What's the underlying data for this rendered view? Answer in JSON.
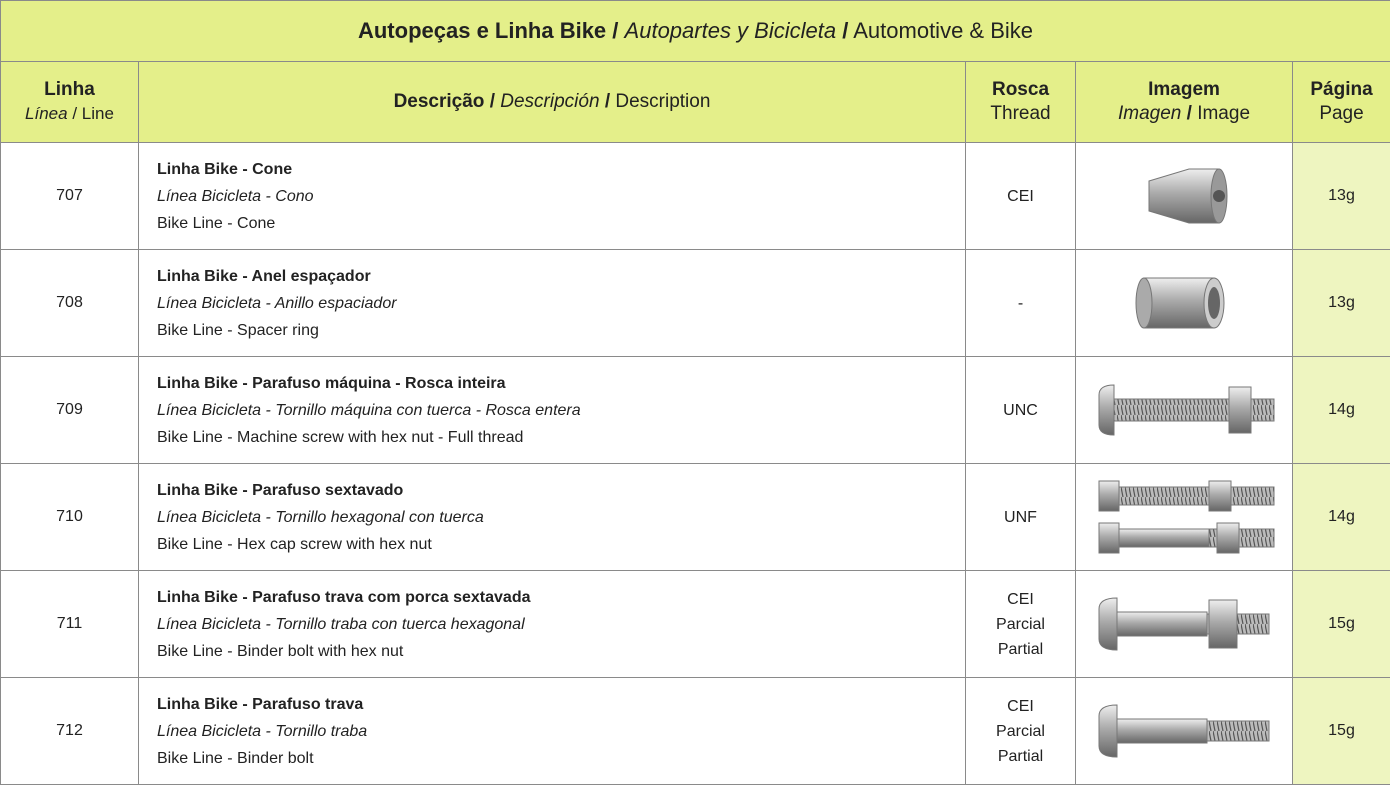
{
  "header": {
    "title": [
      "Autopeças e Linha Bike",
      "/",
      "Autopartes y Bicicleta",
      "/",
      "Automotive & Bike"
    ]
  },
  "columns": {
    "line": [
      "Linha",
      "Línea",
      "/",
      "Line"
    ],
    "description": [
      "Descrição",
      "/",
      "Descripción",
      "/",
      "Description"
    ],
    "thread": [
      "Rosca",
      "Thread"
    ],
    "image": [
      "Imagem",
      "Imagen",
      "/",
      "Image"
    ],
    "page": [
      "Página",
      "Page"
    ]
  },
  "table": {
    "rows": [
      {
        "line": "707",
        "description": [
          "Linha Bike - Cone",
          "Línea Bicicleta - Cono",
          "Bike Line - Cone"
        ],
        "thread": [
          "CEI"
        ],
        "page": "13g"
      },
      {
        "line": "708",
        "description": [
          "Linha Bike - Anel espaçador",
          "Línea Bicicleta - Anillo espaciador",
          "Bike Line - Spacer ring"
        ],
        "thread": [
          "-"
        ],
        "page": "13g"
      },
      {
        "line": "709",
        "description": [
          "Linha Bike - Parafuso máquina - Rosca inteira",
          "Línea Bicicleta - Tornillo máquina con tuerca - Rosca entera",
          "Bike Line - Machine screw with hex nut - Full thread"
        ],
        "thread": [
          "UNC"
        ],
        "page": "14g"
      },
      {
        "line": "710",
        "description": [
          "Linha Bike - Parafuso sextavado",
          "Línea Bicicleta - Tornillo hexagonal con tuerca",
          "Bike Line - Hex cap screw with hex nut"
        ],
        "thread": [
          "UNF"
        ],
        "page": "14g"
      },
      {
        "line": "711",
        "description": [
          "Linha Bike - Parafuso trava com porca sextavada",
          "Línea Bicicleta - Tornillo traba con tuerca hexagonal",
          "Bike Line - Binder bolt with hex nut"
        ],
        "thread": [
          "CEI",
          "Parcial",
          "Partial"
        ],
        "page": "15g"
      },
      {
        "line": "712",
        "description": [
          "Linha Bike - Parafuso trava",
          "Línea Bicicleta - Tornillo traba",
          "Bike Line - Binder bolt"
        ],
        "thread": [
          "CEI",
          "Parcial",
          "Partial"
        ],
        "page": "15g"
      }
    ]
  }
}
